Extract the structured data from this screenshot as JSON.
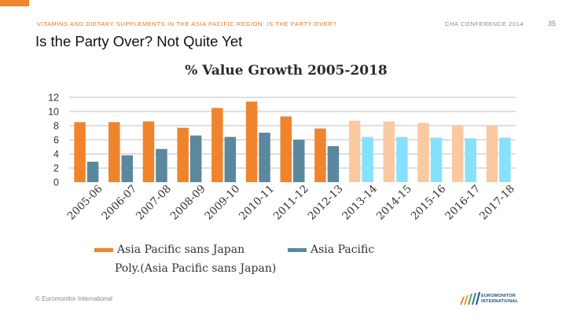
{
  "header": {
    "title": "VITAMINS AND DIETARY SUPPLEMENTS IN THE ASIA PACIFIC REGION: IS THE PARTY OVER?",
    "conference": "CHA CONFERENCE 2014",
    "page_number": "35"
  },
  "slide_title": "Is the Party Over?  Not Quite Yet",
  "footer": {
    "copyright": "© Euromonitor International",
    "logo_line1": "EUROMONITOR",
    "logo_line2": "INTERNATIONAL"
  },
  "colors": {
    "historic_sans_japan": "#f0842c",
    "historic_asia_pacific": "#5b879f",
    "forecast_sans_japan": "#f9c9a2",
    "forecast_asia_pacific": "#86e2fa",
    "gridline": "#bfbfbf"
  },
  "chart_data": {
    "type": "bar",
    "title": "% Value Growth 2005-2018",
    "xlabel": "",
    "ylabel": "",
    "ylim": [
      0,
      12
    ],
    "yticks": [
      0,
      2,
      4,
      6,
      8,
      10,
      12
    ],
    "grid": true,
    "categories": [
      "2005-06",
      "2006-07",
      "2007-08",
      "2008-09",
      "2009-10",
      "2010-11",
      "2011-12",
      "2012-13",
      "2013-14",
      "2014-15",
      "2015-16",
      "2016-17",
      "2017-18"
    ],
    "forecast_start_index": 8,
    "series": [
      {
        "name": "Asia Pacific sans Japan",
        "values": [
          8.5,
          8.5,
          8.6,
          7.7,
          10.5,
          11.4,
          9.3,
          7.6,
          8.7,
          8.6,
          8.4,
          8.1,
          8.0
        ]
      },
      {
        "name": "Asia Pacific",
        "values": [
          2.9,
          3.8,
          4.7,
          6.6,
          6.4,
          7.0,
          6.0,
          5.1,
          6.4,
          6.4,
          6.3,
          6.2,
          6.3
        ]
      }
    ],
    "legend": {
      "position": "bottom",
      "entries": [
        "Asia Pacific sans Japan",
        "Asia Pacific",
        "Poly.(Asia Pacific sans Japan)"
      ]
    }
  }
}
